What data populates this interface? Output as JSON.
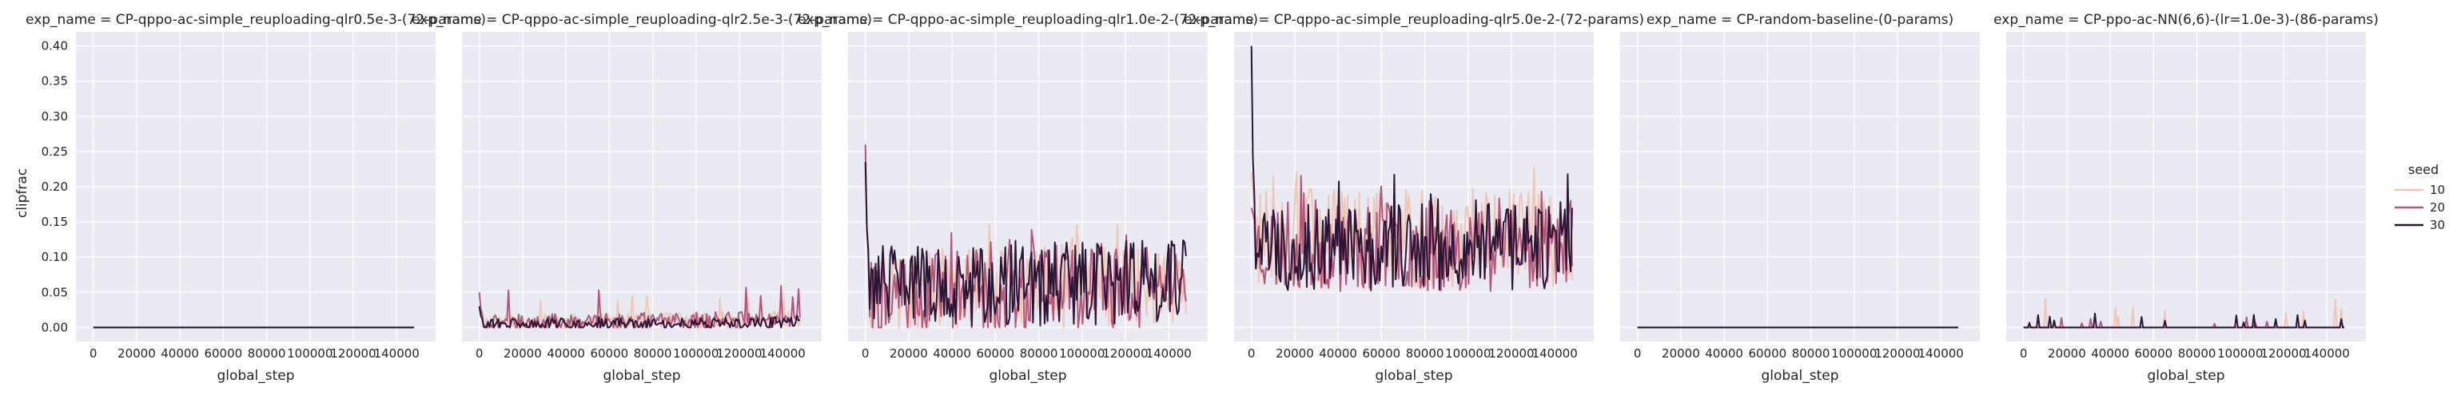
{
  "chart_data": {
    "type": "line",
    "xlabel": "global_step",
    "ylabel": "clipfrac",
    "xlim": [
      0,
      150000
    ],
    "ylim": [
      0,
      0.4
    ],
    "x_ticks": [
      "0",
      "20000",
      "40000",
      "60000",
      "80000",
      "100000",
      "120000",
      "140000"
    ],
    "y_ticks": [
      "0.00",
      "0.05",
      "0.10",
      "0.15",
      "0.20",
      "0.25",
      "0.30",
      "0.35",
      "0.40"
    ],
    "grid": true,
    "legend": {
      "title": "seed",
      "placement": "right",
      "entries": [
        {
          "label": "10",
          "color": "#f0c7b6"
        },
        {
          "label": "20",
          "color": "#b5577b"
        },
        {
          "label": "30",
          "color": "#2a1535"
        }
      ]
    },
    "colors": {
      "panel_bg": "#eaeaf2",
      "grid": "#ffffff",
      "text": "#262626"
    },
    "panels": [
      {
        "title": "exp_name = CP-qppo-ac-simple_reuploading-qlr0.5e-3-(72-params)",
        "x_end": 148000,
        "series": [
          {
            "name": "10",
            "pattern": "flat",
            "peak": 0.0
          },
          {
            "name": "20",
            "pattern": "flat",
            "peak": 0.0
          },
          {
            "name": "30",
            "pattern": "flat",
            "peak": 0.0
          }
        ]
      },
      {
        "title": "exp_name = CP-qppo-ac-simple_reuploading-qlr2.5e-3-(72-params)",
        "x_end": 148000,
        "series": [
          {
            "name": "10",
            "pattern": "noisy",
            "start": 0.03,
            "base": 0.006,
            "slope": 0.004,
            "amp": 0.012,
            "spike": 0.05,
            "seed": 11
          },
          {
            "name": "20",
            "pattern": "noisy",
            "start": 0.05,
            "base": 0.006,
            "slope": 0.004,
            "amp": 0.012,
            "spike": 0.06,
            "seed": 21
          },
          {
            "name": "30",
            "pattern": "noisy",
            "start": 0.03,
            "base": 0.004,
            "slope": 0.002,
            "amp": 0.008,
            "spike": 0.02,
            "seed": 31
          }
        ]
      },
      {
        "title": "exp_name = CP-qppo-ac-simple_reuploading-qlr1.0e-2-(72-params)",
        "x_end": 148000,
        "series": [
          {
            "name": "10",
            "pattern": "noisy",
            "start": 0.23,
            "base": 0.045,
            "slope": 0.015,
            "amp": 0.06,
            "spike": 0.15,
            "seed": 12
          },
          {
            "name": "20",
            "pattern": "noisy",
            "start": 0.26,
            "base": 0.04,
            "slope": 0.01,
            "amp": 0.06,
            "spike": 0.14,
            "seed": 22
          },
          {
            "name": "30",
            "pattern": "noisy",
            "start": 0.235,
            "base": 0.05,
            "slope": 0.01,
            "amp": 0.06,
            "spike": 0.13,
            "seed": 32
          }
        ]
      },
      {
        "title": "exp_name = CP-qppo-ac-simple_reuploading-qlr5.0e-2-(72-params)",
        "x_end": 148000,
        "series": [
          {
            "name": "10",
            "pattern": "noisy",
            "start": 0.22,
            "base": 0.12,
            "slope": 0.0,
            "amp": 0.07,
            "spike": 0.23,
            "seed": 13
          },
          {
            "name": "20",
            "pattern": "noisy",
            "start": 0.17,
            "base": 0.11,
            "slope": 0.0,
            "amp": 0.065,
            "spike": 0.22,
            "seed": 23
          },
          {
            "name": "30",
            "pattern": "noisy",
            "start": 0.4,
            "base": 0.11,
            "slope": 0.0,
            "amp": 0.065,
            "spike": 0.255,
            "seed": 33
          }
        ]
      },
      {
        "title": "exp_name = CP-random-baseline-(0-params)",
        "x_end": 148000,
        "series": [
          {
            "name": "10",
            "pattern": "flat",
            "peak": 0.0
          },
          {
            "name": "20",
            "pattern": "flat",
            "peak": 0.0
          },
          {
            "name": "30",
            "pattern": "flat",
            "peak": 0.0
          }
        ]
      },
      {
        "title": "exp_name = CP-ppo-ac-NN(6,6)-(lr=1.0e-3)-(86-params)",
        "x_end": 148000,
        "series": [
          {
            "name": "10",
            "pattern": "sparse",
            "peak": 0.045,
            "seed": 14
          },
          {
            "name": "20",
            "pattern": "sparse",
            "peak": 0.015,
            "seed": 24
          },
          {
            "name": "30",
            "pattern": "sparse",
            "peak": 0.02,
            "seed": 34
          }
        ]
      }
    ]
  }
}
